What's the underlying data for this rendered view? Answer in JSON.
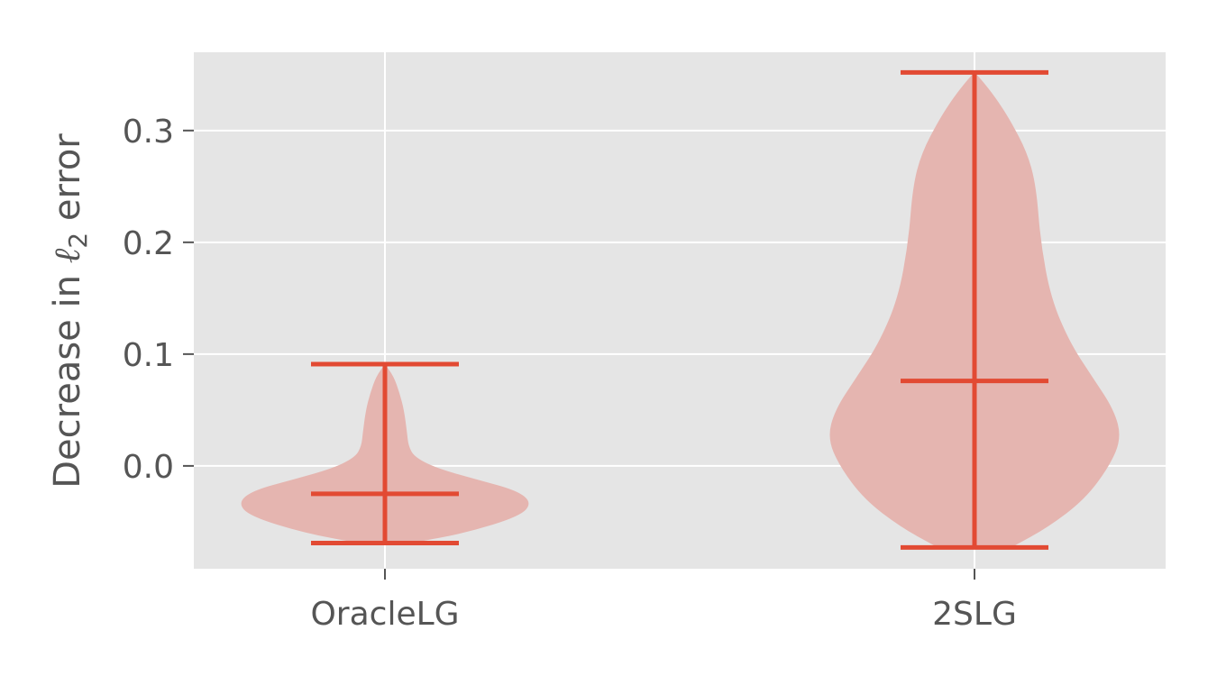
{
  "chart_data": {
    "type": "violin",
    "title": "",
    "xlabel": "",
    "ylabel": {
      "prefix": "Decrease in ",
      "symbol": "ℓ",
      "subscript": "2",
      "suffix": " error"
    },
    "ylim": [
      -0.092,
      0.37
    ],
    "yticks": [
      0.0,
      0.1,
      0.2,
      0.3
    ],
    "ytick_labels": [
      "0.0",
      "0.1",
      "0.2",
      "0.3"
    ],
    "grid": true,
    "categories": [
      "OracleLG",
      "2SLG"
    ],
    "series": [
      {
        "name": "OracleLG",
        "min": -0.069,
        "max": 0.091,
        "mean": -0.025,
        "density": [
          {
            "y": -0.069,
            "w": 0.18
          },
          {
            "y": -0.06,
            "w": 0.55
          },
          {
            "y": -0.045,
            "w": 0.92
          },
          {
            "y": -0.033,
            "w": 1.0
          },
          {
            "y": -0.022,
            "w": 0.9
          },
          {
            "y": -0.012,
            "w": 0.62
          },
          {
            "y": -0.002,
            "w": 0.35
          },
          {
            "y": 0.008,
            "w": 0.2
          },
          {
            "y": 0.018,
            "w": 0.16
          },
          {
            "y": 0.03,
            "w": 0.15
          },
          {
            "y": 0.05,
            "w": 0.13
          },
          {
            "y": 0.065,
            "w": 0.1
          },
          {
            "y": 0.08,
            "w": 0.06
          },
          {
            "y": 0.091,
            "w": 0.0
          }
        ]
      },
      {
        "name": "2SLG",
        "min": -0.073,
        "max": 0.352,
        "mean": 0.076,
        "density": [
          {
            "y": -0.073,
            "w": 0.25
          },
          {
            "y": -0.055,
            "w": 0.5
          },
          {
            "y": -0.03,
            "w": 0.75
          },
          {
            "y": 0.0,
            "w": 0.92
          },
          {
            "y": 0.025,
            "w": 1.0
          },
          {
            "y": 0.05,
            "w": 0.95
          },
          {
            "y": 0.08,
            "w": 0.8
          },
          {
            "y": 0.11,
            "w": 0.65
          },
          {
            "y": 0.15,
            "w": 0.52
          },
          {
            "y": 0.2,
            "w": 0.45
          },
          {
            "y": 0.25,
            "w": 0.42
          },
          {
            "y": 0.28,
            "w": 0.36
          },
          {
            "y": 0.31,
            "w": 0.24
          },
          {
            "y": 0.33,
            "w": 0.14
          },
          {
            "y": 0.345,
            "w": 0.05
          },
          {
            "y": 0.352,
            "w": 0.0
          }
        ]
      }
    ],
    "colors": {
      "background": "#e5e5e5",
      "grid": "#ffffff",
      "fill": "#e5b5b0",
      "line": "#e24a33",
      "text": "#555555"
    }
  }
}
